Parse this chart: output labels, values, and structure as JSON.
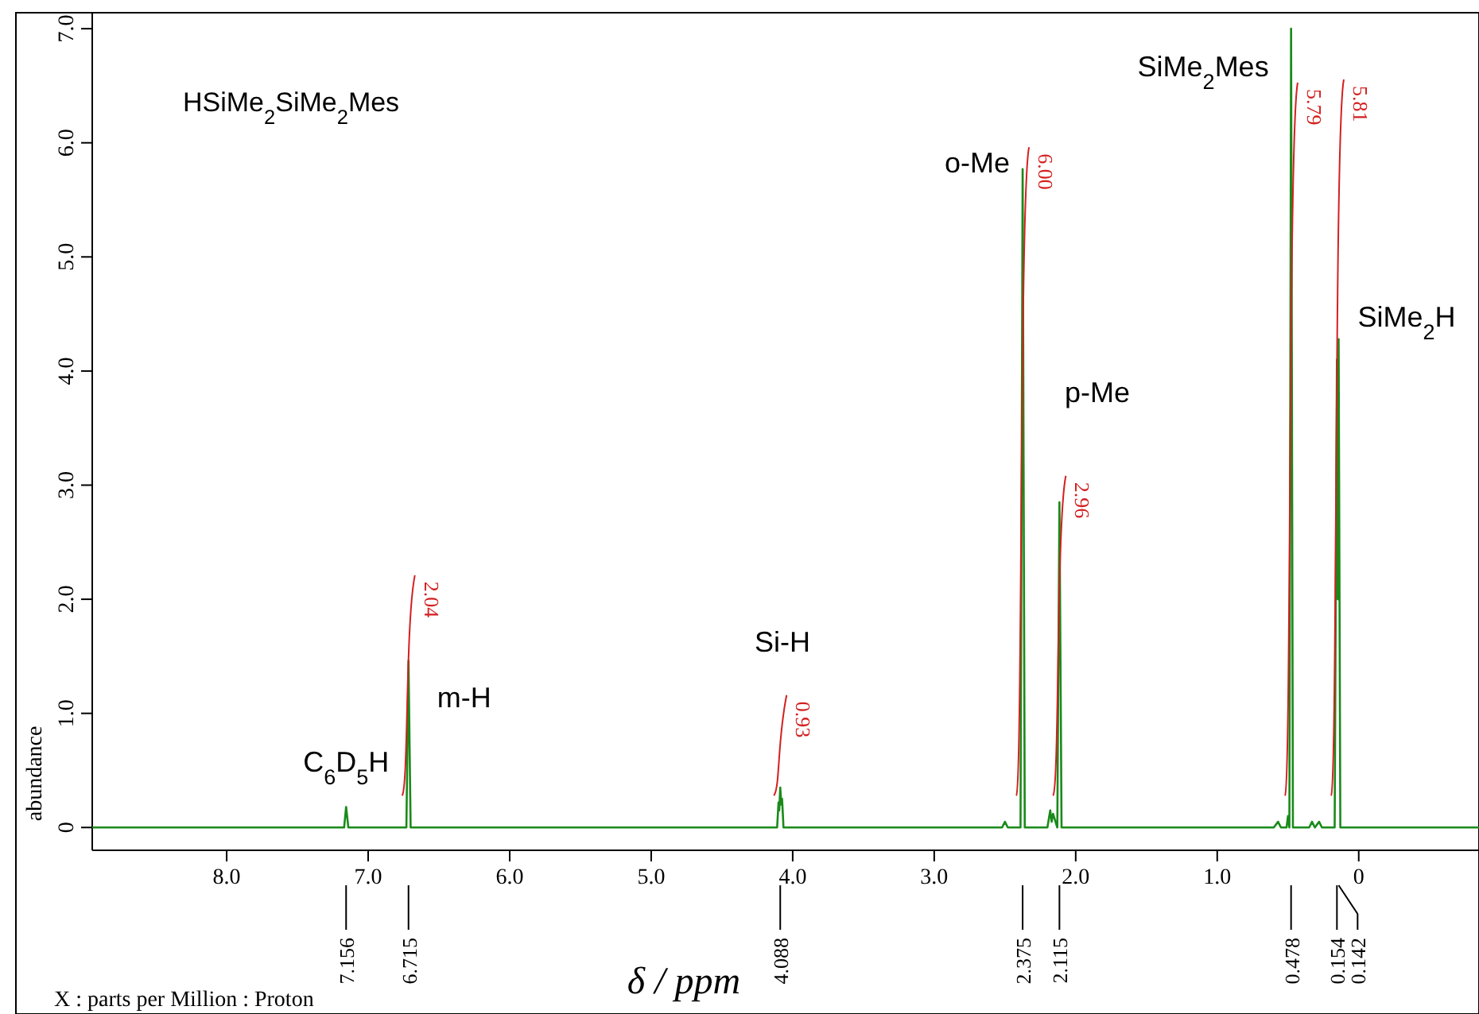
{
  "chart_data": {
    "type": "line",
    "title": "HSiMe$_{2}$SiMe$_{2}$Mes",
    "xlabel": "δ / ppm",
    "ylabel": "abundance",
    "xlim": [
      8.95,
      -0.85
    ],
    "ylim": [
      -0.2,
      7.14
    ],
    "xticks": [
      {
        "value": 8,
        "label": "8.0"
      },
      {
        "value": 7,
        "label": "7.0"
      },
      {
        "value": 6,
        "label": "6.0"
      },
      {
        "value": 5,
        "label": "5.0"
      },
      {
        "value": 4,
        "label": "4.0"
      },
      {
        "value": 3,
        "label": "3.0"
      },
      {
        "value": 2,
        "label": "2.0"
      },
      {
        "value": 1,
        "label": "1.0"
      },
      0
    ],
    "yticks": [
      0,
      {
        "value": 1,
        "label": "1.0"
      },
      {
        "value": 2,
        "label": "2.0"
      },
      {
        "value": 3,
        "label": "3.0"
      },
      {
        "value": 4,
        "label": "4.0"
      },
      {
        "value": 5,
        "label": "5.0"
      },
      {
        "value": 6,
        "label": "6.0"
      },
      {
        "value": 7,
        "label": "7.0"
      }
    ],
    "grid": false,
    "marker": "none",
    "line_style": "solid",
    "series": [
      {
        "color": "#1a8a1a",
        "x": [
          8.95,
          7.4,
          7.17,
          7.156,
          7.14,
          6.73,
          6.715,
          6.7,
          4.11,
          4.1,
          4.095,
          4.088,
          4.08,
          4.075,
          4.065,
          2.52,
          2.5,
          2.48,
          2.39,
          2.375,
          2.36,
          2.2,
          2.18,
          2.17,
          2.16,
          2.13,
          2.115,
          2.1,
          1.95,
          0.6,
          0.57,
          0.55,
          0.51,
          0.5,
          0.49,
          0.478,
          0.465,
          0.35,
          0.33,
          0.31,
          0.28,
          0.26,
          0.17,
          0.154,
          0.148,
          0.142,
          0.13,
          0.05,
          -0.85
        ],
        "values": [
          0,
          0,
          0,
          0.18,
          0,
          0,
          1.46,
          0,
          0,
          0.22,
          0.15,
          0.35,
          0.2,
          0.25,
          0,
          0,
          0.05,
          0,
          0,
          5.77,
          0,
          0,
          0.15,
          0.05,
          0.12,
          0,
          2.85,
          0,
          0,
          0,
          0.05,
          0,
          0,
          0.1,
          0,
          7.0,
          0,
          0,
          0.05,
          0,
          0.05,
          0,
          0,
          4.1,
          2.0,
          4.28,
          0,
          0,
          0
        ]
      }
    ],
    "annotations": [
      {
        "text": "C$_{6}$D$_{5}$H",
        "x": 7.156,
        "y": 0.18
      },
      {
        "text": "m-H",
        "x": 6.715,
        "y": 1.46
      },
      "Si-H",
      {
        "text": "o-Me",
        "x": 2.375,
        "y": 5.77
      },
      "p-Me",
      {
        "text": "SiMe$_{2}$Mes",
        "x": 0.478,
        "y": 7.0
      },
      {
        "text": "SiMe$_{2}$H",
        "x": 0.142,
        "y": 4.28
      },
      {
        "text": "2.04",
        "x": 6.715,
        "y": 1.46
      },
      {
        "text": "0.93",
        "x": 4.088,
        "y": 0.35
      },
      {
        "text": "6.00",
        "x": 2.375,
        "y": 5.77
      },
      {
        "text": "2.96",
        "x": 2.115,
        "y": 2.85
      },
      "5.79",
      "5.81",
      {
        "text": "7.156",
        "x": 7.156
      },
      {
        "text": "6.715",
        "x": 6.715
      },
      {
        "text": "4.088",
        "x": 4.088
      },
      {
        "text": "2.375",
        "x": 2.375
      },
      {
        "text": "2.115",
        "x": 2.115
      },
      {
        "text": "0.478",
        "x": 0.478
      },
      {
        "text": "0.154",
        "x": 0.154
      },
      {
        "text": "0.142",
        "x": 0.142
      },
      "X : parts per Million : Proton"
    ]
  }
}
